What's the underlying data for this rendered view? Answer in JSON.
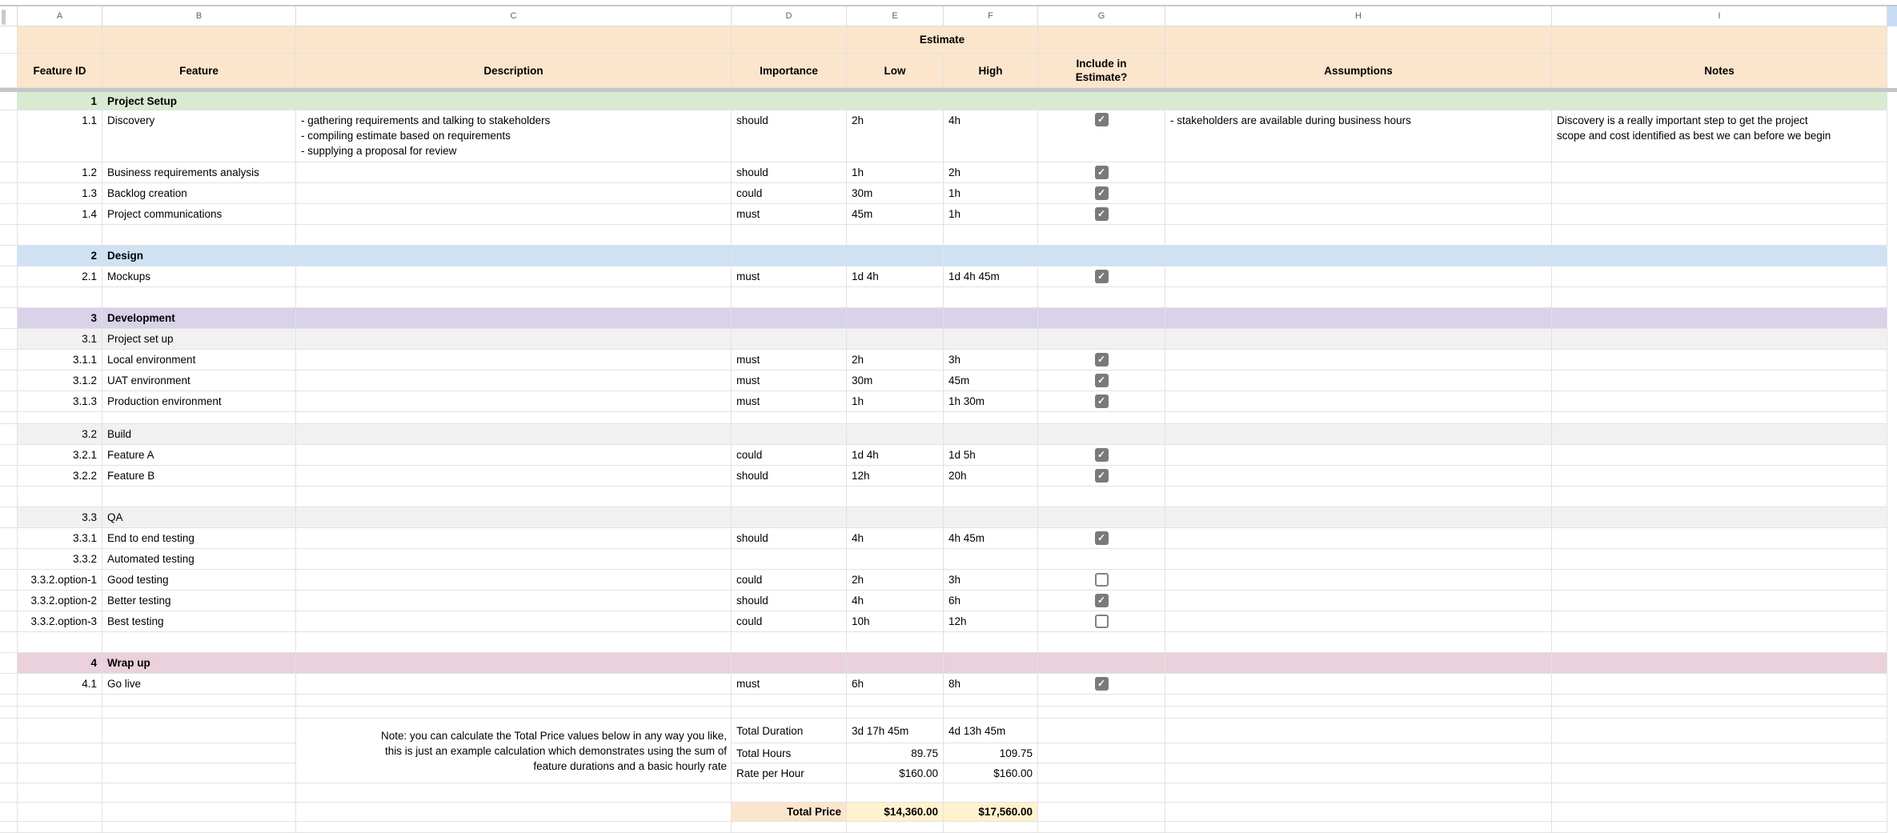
{
  "sheet": {
    "column_letters": [
      "A",
      "B",
      "C",
      "D",
      "E",
      "F",
      "G",
      "H",
      "I"
    ],
    "header": {
      "estimate_group": "Estimate",
      "feature_id": "Feature ID",
      "feature": "Feature",
      "description": "Description",
      "importance": "Importance",
      "low": "Low",
      "high": "High",
      "include": "Include in Estimate?",
      "assumptions": "Assumptions",
      "notes": "Notes"
    },
    "rows": [
      {
        "type": "section",
        "id": "1",
        "feature": "Project Setup",
        "color": "green"
      },
      {
        "type": "item",
        "id": "1.1",
        "feature": "Discovery",
        "description": [
          "- gathering requirements and talking to stakeholders",
          "- compiling estimate based on requirements",
          "- supplying a proposal for review"
        ],
        "importance": "should",
        "low": "2h",
        "high": "4h",
        "checkbox": "checked",
        "assumptions": "- stakeholders are available during business hours",
        "notes": [
          "Discovery is a really important step to get the project",
          "scope and cost identified as best we can before we begin"
        ]
      },
      {
        "type": "item",
        "id": "1.2",
        "feature": "Business requirements analysis",
        "importance": "should",
        "low": "1h",
        "high": "2h",
        "checkbox": "checked"
      },
      {
        "type": "item",
        "id": "1.3",
        "feature": "Backlog creation",
        "importance": "could",
        "low": "30m",
        "high": "1h",
        "checkbox": "checked"
      },
      {
        "type": "item",
        "id": "1.4",
        "feature": "Project communications",
        "importance": "must",
        "low": "45m",
        "high": "1h",
        "checkbox": "checked"
      },
      {
        "type": "blank"
      },
      {
        "type": "section",
        "id": "2",
        "feature": "Design",
        "color": "blue"
      },
      {
        "type": "item",
        "id": "2.1",
        "feature": "Mockups",
        "importance": "must",
        "low": "1d 4h",
        "high": "1d 4h 45m",
        "checkbox": "checked"
      },
      {
        "type": "blank"
      },
      {
        "type": "section",
        "id": "3",
        "feature": "Development",
        "color": "purple"
      },
      {
        "type": "subsection",
        "id": "3.1",
        "feature": "Project set up"
      },
      {
        "type": "item",
        "id": "3.1.1",
        "feature": "Local environment",
        "importance": "must",
        "low": "2h",
        "high": "3h",
        "checkbox": "checked"
      },
      {
        "type": "item",
        "id": "3.1.2",
        "feature": "UAT environment",
        "importance": "must",
        "low": "30m",
        "high": "45m",
        "checkbox": "checked"
      },
      {
        "type": "item",
        "id": "3.1.3",
        "feature": "Production environment",
        "importance": "must",
        "low": "1h",
        "high": "1h 30m",
        "checkbox": "checked"
      },
      {
        "type": "blank"
      },
      {
        "type": "subsection",
        "id": "3.2",
        "feature": "Build"
      },
      {
        "type": "item",
        "id": "3.2.1",
        "feature": "Feature A",
        "importance": "could",
        "low": "1d 4h",
        "high": "1d 5h",
        "checkbox": "checked"
      },
      {
        "type": "item",
        "id": "3.2.2",
        "feature": "Feature B",
        "importance": "should",
        "low": "12h",
        "high": "20h",
        "checkbox": "checked"
      },
      {
        "type": "blank"
      },
      {
        "type": "subsection",
        "id": "3.3",
        "feature": "QA"
      },
      {
        "type": "item",
        "id": "3.3.1",
        "feature": "End to end testing",
        "importance": "should",
        "low": "4h",
        "high": "4h 45m",
        "checkbox": "checked"
      },
      {
        "type": "item",
        "id": "3.3.2",
        "feature": "Automated testing"
      },
      {
        "type": "item",
        "id": "3.3.2.option-1",
        "feature": "Good testing",
        "importance": "could",
        "low": "2h",
        "high": "3h",
        "checkbox": "unchecked"
      },
      {
        "type": "item",
        "id": "3.3.2.option-2",
        "feature": "Better testing",
        "importance": "should",
        "low": "4h",
        "high": "6h",
        "checkbox": "checked"
      },
      {
        "type": "item",
        "id": "3.3.2.option-3",
        "feature": "Best testing",
        "importance": "could",
        "low": "10h",
        "high": "12h",
        "checkbox": "unchecked"
      },
      {
        "type": "blank"
      },
      {
        "type": "section",
        "id": "4",
        "feature": "Wrap up",
        "color": "pink"
      },
      {
        "type": "item",
        "id": "4.1",
        "feature": "Go live",
        "importance": "must",
        "low": "6h",
        "high": "8h",
        "checkbox": "checked"
      },
      {
        "type": "blank"
      },
      {
        "type": "blank"
      },
      {
        "type": "total",
        "label": "Total Duration",
        "low": "3d 17h 45m",
        "high": "4d 13h 45m",
        "align": "left"
      },
      {
        "type": "total",
        "label": "Total Hours",
        "low": "89.75",
        "high": "109.75",
        "align": "right"
      },
      {
        "type": "total",
        "label": "Rate per Hour",
        "low": "$160.00",
        "high": "$160.00",
        "align": "right"
      },
      {
        "type": "blank"
      },
      {
        "type": "total_price",
        "label": "Total Price",
        "low": "$14,360.00",
        "high": "$17,560.00"
      },
      {
        "type": "blank"
      }
    ],
    "totals_note": [
      "Note: you can calculate the Total Price values below in any way you like,",
      "this is just an example calculation which demonstrates using the sum of",
      "feature durations and a basic hourly rate"
    ],
    "colors": {
      "header_fill": "#fce5cd",
      "section_green": "#d9ead3",
      "section_blue": "#cfe2f3",
      "section_purple": "#d9d2e9",
      "section_pink": "#ead1dc",
      "subsection_gray": "#f1f1f1",
      "total_price_value_fill": "#fff2cc",
      "total_price_label_fill": "#fce5cd",
      "checkbox_checked": "#7a7a7a",
      "gridline": "#e2e2e2",
      "frozen_divider": "#c6c6c6",
      "column_selected": "#c9dcf5"
    }
  }
}
